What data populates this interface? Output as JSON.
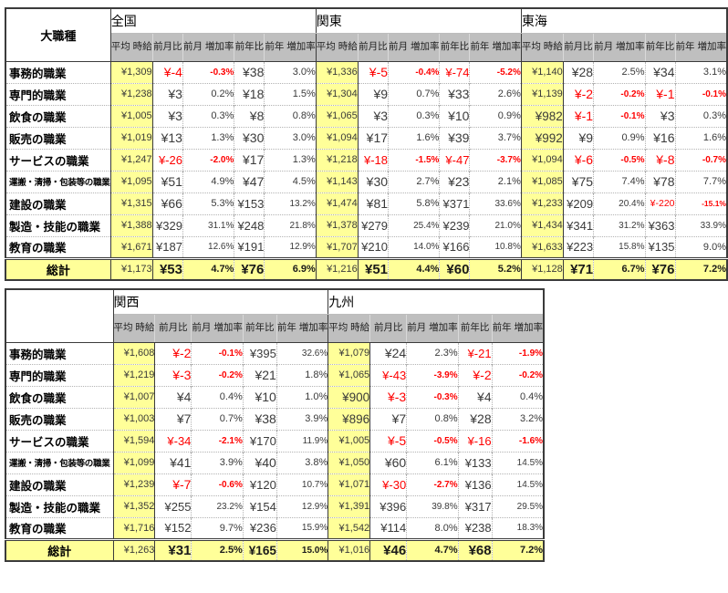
{
  "chart_data": {
    "type": "table",
    "description": "大職種別・地域別の平均時給と前月比・前年比の増減",
    "total_label": "総計",
    "sub_headers": [
      "平均\n時給",
      "前月比",
      "前月\n増加率",
      "前年比",
      "前年\n増加率"
    ],
    "sub_header_names": [
      "avg-hourly-wage",
      "mom-diff",
      "mom-rate",
      "yoy-diff",
      "yoy-rate"
    ],
    "row_labels": [
      "事務的職業",
      "専門的職業",
      "飲食の職業",
      "販売の職業",
      "サービスの職業",
      "運搬・清掃・包装等の職業",
      "建設の職業",
      "製造・技能の職業",
      "教育の職業"
    ],
    "tables": [
      {
        "corner_label": "大職種",
        "regions": [
          {
            "name": "全国",
            "rows": [
              [
                "¥1,309",
                "¥-4",
                "-0.3%",
                "¥38",
                "3.0%"
              ],
              [
                "¥1,238",
                "¥3",
                "0.2%",
                "¥18",
                "1.5%"
              ],
              [
                "¥1,005",
                "¥3",
                "0.3%",
                "¥8",
                "0.8%"
              ],
              [
                "¥1,019",
                "¥13",
                "1.3%",
                "¥30",
                "3.0%"
              ],
              [
                "¥1,247",
                "¥-26",
                "-2.0%",
                "¥17",
                "1.3%"
              ],
              [
                "¥1,095",
                "¥51",
                "4.9%",
                "¥47",
                "4.5%"
              ],
              [
                "¥1,315",
                "¥66",
                "5.3%",
                "¥153",
                "13.2%"
              ],
              [
                "¥1,388",
                "¥329",
                "31.1%",
                "¥248",
                "21.8%"
              ],
              [
                "¥1,671",
                "¥187",
                "12.6%",
                "¥191",
                "12.9%"
              ]
            ],
            "total": [
              "¥1,173",
              "¥53",
              "4.7%",
              "¥76",
              "6.9%"
            ]
          },
          {
            "name": "関東",
            "rows": [
              [
                "¥1,336",
                "¥-5",
                "-0.4%",
                "¥-74",
                "-5.2%"
              ],
              [
                "¥1,304",
                "¥9",
                "0.7%",
                "¥33",
                "2.6%"
              ],
              [
                "¥1,065",
                "¥3",
                "0.3%",
                "¥10",
                "0.9%"
              ],
              [
                "¥1,094",
                "¥17",
                "1.6%",
                "¥39",
                "3.7%"
              ],
              [
                "¥1,218",
                "¥-18",
                "-1.5%",
                "¥-47",
                "-3.7%"
              ],
              [
                "¥1,143",
                "¥30",
                "2.7%",
                "¥23",
                "2.1%"
              ],
              [
                "¥1,474",
                "¥81",
                "5.8%",
                "¥371",
                "33.6%"
              ],
              [
                "¥1,378",
                "¥279",
                "25.4%",
                "¥239",
                "21.0%"
              ],
              [
                "¥1,707",
                "¥210",
                "14.0%",
                "¥166",
                "10.8%"
              ]
            ],
            "total": [
              "¥1,216",
              "¥51",
              "4.4%",
              "¥60",
              "5.2%"
            ]
          },
          {
            "name": "東海",
            "rows": [
              [
                "¥1,140",
                "¥28",
                "2.5%",
                "¥34",
                "3.1%"
              ],
              [
                "¥1,139",
                "¥-2",
                "-0.2%",
                "¥-1",
                "-0.1%"
              ],
              [
                "¥982",
                "¥-1",
                "-0.1%",
                "¥3",
                "0.3%"
              ],
              [
                "¥992",
                "¥9",
                "0.9%",
                "¥16",
                "1.6%"
              ],
              [
                "¥1,094",
                "¥-6",
                "-0.5%",
                "¥-8",
                "-0.7%"
              ],
              [
                "¥1,085",
                "¥75",
                "7.4%",
                "¥78",
                "7.7%"
              ],
              [
                "¥1,233",
                "¥209",
                "20.4%",
                "¥-220",
                "-15.1%"
              ],
              [
                "¥1,434",
                "¥341",
                "31.2%",
                "¥363",
                "33.9%"
              ],
              [
                "¥1,633",
                "¥223",
                "15.8%",
                "¥135",
                "9.0%"
              ]
            ],
            "total": [
              "¥1,128",
              "¥71",
              "6.7%",
              "¥76",
              "7.2%"
            ]
          }
        ]
      },
      {
        "corner_label": "",
        "regions": [
          {
            "name": "関西",
            "rows": [
              [
                "¥1,608",
                "¥-2",
                "-0.1%",
                "¥395",
                "32.6%"
              ],
              [
                "¥1,219",
                "¥-3",
                "-0.2%",
                "¥21",
                "1.8%"
              ],
              [
                "¥1,007",
                "¥4",
                "0.4%",
                "¥10",
                "1.0%"
              ],
              [
                "¥1,003",
                "¥7",
                "0.7%",
                "¥38",
                "3.9%"
              ],
              [
                "¥1,594",
                "¥-34",
                "-2.1%",
                "¥170",
                "11.9%"
              ],
              [
                "¥1,099",
                "¥41",
                "3.9%",
                "¥40",
                "3.8%"
              ],
              [
                "¥1,239",
                "¥-7",
                "-0.6%",
                "¥120",
                "10.7%"
              ],
              [
                "¥1,352",
                "¥255",
                "23.2%",
                "¥154",
                "12.9%"
              ],
              [
                "¥1,716",
                "¥152",
                "9.7%",
                "¥236",
                "15.9%"
              ]
            ],
            "total": [
              "¥1,263",
              "¥31",
              "2.5%",
              "¥165",
              "15.0%"
            ]
          },
          {
            "name": "九州",
            "rows": [
              [
                "¥1,079",
                "¥24",
                "2.3%",
                "¥-21",
                "-1.9%"
              ],
              [
                "¥1,065",
                "¥-43",
                "-3.9%",
                "¥-2",
                "-0.2%"
              ],
              [
                "¥900",
                "¥-3",
                "-0.3%",
                "¥4",
                "0.4%"
              ],
              [
                "¥896",
                "¥7",
                "0.8%",
                "¥28",
                "3.2%"
              ],
              [
                "¥1,005",
                "¥-5",
                "-0.5%",
                "¥-16",
                "-1.6%"
              ],
              [
                "¥1,050",
                "¥60",
                "6.1%",
                "¥133",
                "14.5%"
              ],
              [
                "¥1,071",
                "¥-30",
                "-2.7%",
                "¥136",
                "14.5%"
              ],
              [
                "¥1,391",
                "¥396",
                "39.8%",
                "¥317",
                "29.5%"
              ],
              [
                "¥1,542",
                "¥114",
                "8.0%",
                "¥238",
                "18.3%"
              ]
            ],
            "total": [
              "¥1,016",
              "¥46",
              "4.7%",
              "¥68",
              "7.2%"
            ]
          }
        ]
      }
    ],
    "colors": {
      "header_bg": "#bfbfbf",
      "highlight_bg": "#ffff99",
      "negative_text": "#fe0000",
      "border_dark": "#3b3b3b"
    },
    "layout": {
      "legend_position": "none",
      "grid": "dotted-inner-solid-outer"
    }
  }
}
